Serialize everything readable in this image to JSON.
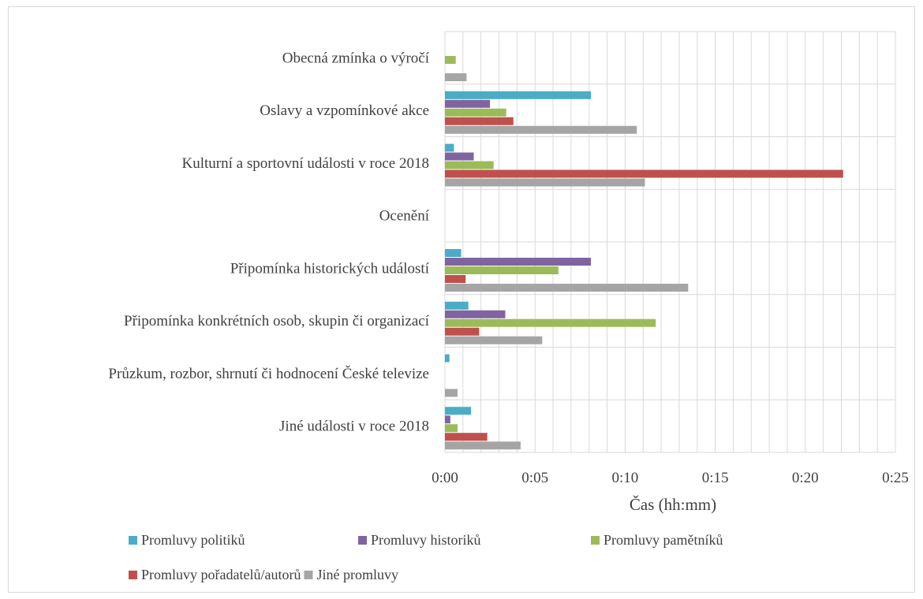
{
  "chart_data": {
    "type": "bar",
    "orientation": "horizontal",
    "categories": [
      "Obecná zmínka o výročí",
      "Oslavy a vzpomínkové akce",
      "Kulturní a sportovní události v roce 2018",
      "Ocenění",
      "Připomínka historických událostí",
      "Připomínka konkrétních osob, skupin či organizací",
      "Průzkum, rozbor, shrnutí či hodnocení České televize",
      "Jiné události v roce 2018"
    ],
    "value_unit": "minutes",
    "series": [
      {
        "name": "Promluvy politiků",
        "color": "#4bacc6",
        "values": [
          0,
          8.1,
          0.5,
          0,
          0.9,
          1.3,
          0.25,
          1.45
        ]
      },
      {
        "name": "Promluvy historiků",
        "color": "#8064a2",
        "values": [
          0,
          2.5,
          1.6,
          0,
          8.1,
          3.35,
          0,
          0.3
        ]
      },
      {
        "name": "Promluvy pamětníků",
        "color": "#9bbb59",
        "values": [
          0.6,
          3.4,
          2.7,
          0,
          6.3,
          11.7,
          0,
          0.7
        ]
      },
      {
        "name": "Promluvy pořadatelů/autorů",
        "color": "#c0504d",
        "values": [
          0,
          3.8,
          22.1,
          0,
          1.15,
          1.9,
          0,
          2.35
        ]
      },
      {
        "name": "Jiné promluvy",
        "color": "#a5a5a5",
        "values": [
          1.2,
          10.65,
          11.1,
          0,
          13.5,
          5.4,
          0.7,
          4.2
        ]
      }
    ],
    "x_ticks": [
      "0:00",
      "0:05",
      "0:10",
      "0:15",
      "0:20",
      "0:25"
    ],
    "xlim": [
      0,
      25
    ],
    "xlabel": "Čas (hh:mm)",
    "ylabel": "",
    "grid": true,
    "legend_position": "bottom"
  }
}
